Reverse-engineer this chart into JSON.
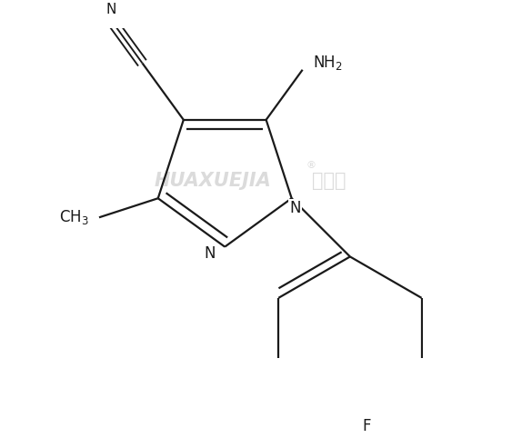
{
  "background_color": "#ffffff",
  "line_color": "#1a1a1a",
  "line_width": 1.6,
  "watermark_text": "HUAXUEJIA",
  "watermark_cn": "化学加",
  "watermark_color": "#cccccc",
  "font_size_atoms": 12,
  "font_size_watermark": 15,
  "reg_symbol": "®",
  "label_N1": "N",
  "label_N2": "N",
  "label_N_cn": "N",
  "label_NH2": "NH₂",
  "label_CH3": "CH₃",
  "label_F": "F"
}
